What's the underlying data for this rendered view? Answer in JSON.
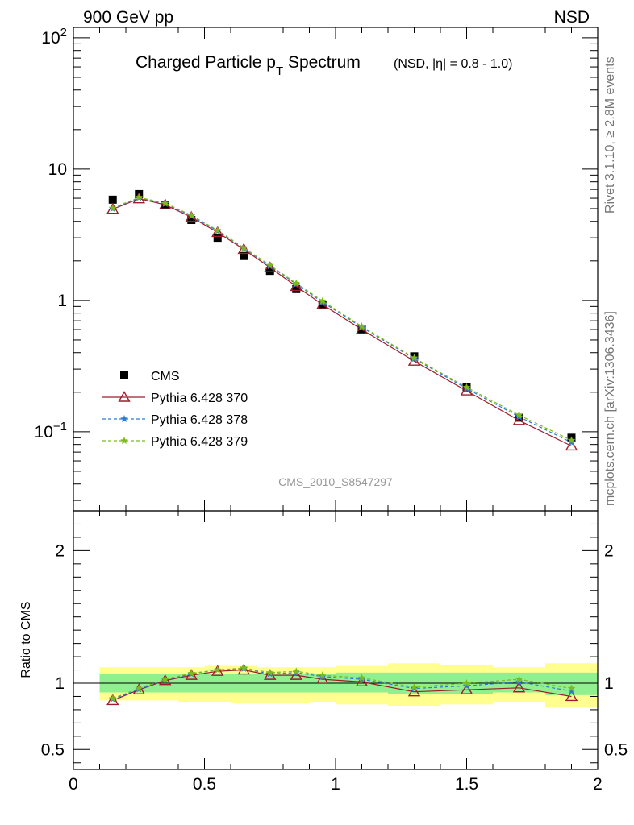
{
  "header": {
    "left_label": "900 GeV pp",
    "right_label": "NSD"
  },
  "side_labels": {
    "rivet": "Rivet 3.1.10, ≥ 2.8M events",
    "source": "mcplots.cern.ch [arXiv:1306.3436]"
  },
  "watermark": "CMS_2010_S8547297",
  "chart_data": [
    {
      "type": "scatter",
      "panel": "main",
      "title_main": "Charged Particle p",
      "title_sub": "T",
      "title_main2": " Spectrum",
      "title_note": "(NSD, |η| = 0.8 - 1.0)",
      "yscale": "log",
      "xlim": [
        0,
        2
      ],
      "ylim": [
        0.025,
        120
      ],
      "y_ticks": [
        {
          "value": 100,
          "label": "10",
          "sup": "2"
        },
        {
          "value": 10,
          "label": "10",
          "sup": ""
        },
        {
          "value": 1,
          "label": "1",
          "sup": ""
        },
        {
          "value": 0.1,
          "label": "10",
          "sup": "−1"
        }
      ],
      "legend_position": "lower-left",
      "series": [
        {
          "name": "CMS",
          "marker": "square",
          "color": "#000000",
          "x": [
            0.15,
            0.25,
            0.35,
            0.45,
            0.55,
            0.65,
            0.75,
            0.85,
            0.95,
            1.1,
            1.3,
            1.5,
            1.7,
            1.9
          ],
          "values": [
            5.85,
            6.45,
            5.35,
            4.1,
            3.0,
            2.18,
            1.68,
            1.22,
            0.93,
            0.6,
            0.375,
            0.218,
            0.128,
            0.09
          ]
        },
        {
          "name": "Pythia 6.428 370",
          "marker": "triangle",
          "line": "solid",
          "color": "#a01c2c",
          "x": [
            0.15,
            0.25,
            0.35,
            0.45,
            0.55,
            0.65,
            0.75,
            0.85,
            0.95,
            1.1,
            1.3,
            1.5,
            1.7,
            1.9
          ],
          "values": [
            4.95,
            5.95,
            5.35,
            4.3,
            3.3,
            2.45,
            1.78,
            1.28,
            0.93,
            0.6,
            0.345,
            0.205,
            0.122,
            0.078
          ]
        },
        {
          "name": "Pythia 6.428 378",
          "marker": "star",
          "line": "dashed",
          "color": "#2b7bd6",
          "x": [
            0.15,
            0.25,
            0.35,
            0.45,
            0.55,
            0.65,
            0.75,
            0.85,
            0.95,
            1.1,
            1.3,
            1.5,
            1.7,
            1.9
          ],
          "values": [
            5.0,
            6.05,
            5.45,
            4.4,
            3.38,
            2.5,
            1.83,
            1.33,
            0.97,
            0.625,
            0.36,
            0.213,
            0.13,
            0.083
          ]
        },
        {
          "name": "Pythia 6.428 379",
          "marker": "star",
          "line": "dashed",
          "color": "#7cba1e",
          "x": [
            0.15,
            0.25,
            0.35,
            0.45,
            0.55,
            0.65,
            0.75,
            0.85,
            0.95,
            1.1,
            1.3,
            1.5,
            1.7,
            1.9
          ],
          "values": [
            5.05,
            6.1,
            5.5,
            4.45,
            3.42,
            2.52,
            1.85,
            1.35,
            0.99,
            0.635,
            0.365,
            0.218,
            0.134,
            0.086
          ]
        }
      ]
    },
    {
      "type": "line",
      "panel": "ratio",
      "ylabel": "Ratio to CMS",
      "xlim": [
        0,
        2
      ],
      "ylim": [
        0.35,
        2.3
      ],
      "y_ticks": [
        0.5,
        1,
        2
      ],
      "x_ticks": [
        {
          "value": 0,
          "label": "0"
        },
        {
          "value": 0.5,
          "label": "0.5"
        },
        {
          "value": 1,
          "label": "1"
        },
        {
          "value": 1.5,
          "label": "1.5"
        },
        {
          "value": 2,
          "label": "2"
        }
      ],
      "bands": {
        "bins": [
          [
            0.1,
            0.2
          ],
          [
            0.2,
            0.3
          ],
          [
            0.3,
            0.4
          ],
          [
            0.4,
            0.5
          ],
          [
            0.5,
            0.6
          ],
          [
            0.6,
            0.7
          ],
          [
            0.7,
            0.8
          ],
          [
            0.8,
            0.9
          ],
          [
            0.9,
            1.0
          ],
          [
            1.0,
            1.2
          ],
          [
            1.2,
            1.4
          ],
          [
            1.4,
            1.6
          ],
          [
            1.6,
            1.8
          ],
          [
            1.8,
            2.0
          ]
        ],
        "inner_color": "#90f090",
        "outer_color": "#ffff90",
        "inner": [
          [
            0.93,
            1.07
          ],
          [
            0.93,
            1.07
          ],
          [
            0.93,
            1.07
          ],
          [
            0.93,
            1.07
          ],
          [
            0.93,
            1.07
          ],
          [
            0.93,
            1.07
          ],
          [
            0.93,
            1.07
          ],
          [
            0.93,
            1.07
          ],
          [
            0.93,
            1.07
          ],
          [
            0.93,
            1.08
          ],
          [
            0.92,
            1.08
          ],
          [
            0.92,
            1.08
          ],
          [
            0.93,
            1.08
          ],
          [
            0.91,
            1.08
          ]
        ],
        "outer": [
          [
            0.87,
            1.12
          ],
          [
            0.87,
            1.12
          ],
          [
            0.87,
            1.12
          ],
          [
            0.86,
            1.12
          ],
          [
            0.86,
            1.13
          ],
          [
            0.85,
            1.13
          ],
          [
            0.85,
            1.12
          ],
          [
            0.85,
            1.12
          ],
          [
            0.86,
            1.12
          ],
          [
            0.84,
            1.13
          ],
          [
            0.83,
            1.15
          ],
          [
            0.84,
            1.14
          ],
          [
            0.86,
            1.12
          ],
          [
            0.82,
            1.15
          ]
        ]
      },
      "series": [
        {
          "name": "Pythia 6.428 370",
          "marker": "triangle",
          "line": "solid",
          "color": "#a01c2c",
          "x": [
            0.15,
            0.25,
            0.35,
            0.45,
            0.55,
            0.65,
            0.75,
            0.85,
            0.95,
            1.1,
            1.3,
            1.5,
            1.7,
            1.9
          ],
          "values": [
            0.87,
            0.95,
            1.02,
            1.06,
            1.09,
            1.1,
            1.06,
            1.06,
            1.03,
            1.01,
            0.935,
            0.95,
            0.965,
            0.9
          ]
        },
        {
          "name": "Pythia 6.428 378",
          "marker": "star",
          "line": "dashed",
          "color": "#2b7bd6",
          "x": [
            0.15,
            0.25,
            0.35,
            0.45,
            0.55,
            0.65,
            0.75,
            0.85,
            0.95,
            1.1,
            1.3,
            1.5,
            1.7,
            1.9
          ],
          "values": [
            0.88,
            0.955,
            1.025,
            1.07,
            1.1,
            1.11,
            1.07,
            1.08,
            1.05,
            1.03,
            0.96,
            0.98,
            1.01,
            0.94
          ]
        },
        {
          "name": "Pythia 6.428 379",
          "marker": "star",
          "line": "dashed",
          "color": "#7cba1e",
          "x": [
            0.15,
            0.25,
            0.35,
            0.45,
            0.55,
            0.65,
            0.75,
            0.85,
            0.95,
            1.1,
            1.3,
            1.5,
            1.7,
            1.9
          ],
          "values": [
            0.885,
            0.96,
            1.03,
            1.075,
            1.1,
            1.115,
            1.08,
            1.09,
            1.06,
            1.04,
            0.97,
            1.0,
            1.03,
            0.96
          ]
        }
      ]
    }
  ]
}
